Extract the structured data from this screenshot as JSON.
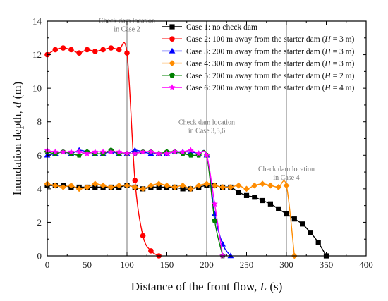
{
  "chart_data": {
    "type": "line",
    "xlabel_prefix": "Distance of the front flow, ",
    "xlabel_var": "L",
    "xlabel_suffix": " (s)",
    "ylabel_prefix": "Inundation depth, ",
    "ylabel_var": "d",
    "ylabel_suffix": " (m)",
    "xlim": [
      0,
      400
    ],
    "ylim": [
      0,
      14
    ],
    "xticks": [
      0,
      50,
      100,
      150,
      200,
      250,
      300,
      350,
      400
    ],
    "yticks": [
      0,
      2,
      4,
      6,
      8,
      10,
      12,
      14
    ],
    "legend_position": "top-right",
    "grid": false,
    "vlines": [
      100,
      200,
      300
    ],
    "annotations": [
      {
        "lines": [
          "Check dam location",
          "in Case 2"
        ],
        "x": 100,
        "y": 13.9
      },
      {
        "lines": [
          "Check dam location",
          "in Case 3,5,6"
        ],
        "x": 200,
        "y": 7.85
      },
      {
        "lines": [
          "Check dam location",
          "in Case 4"
        ],
        "x": 300,
        "y": 5.05
      }
    ],
    "series": [
      {
        "name": "Case 1: no check dam",
        "color": "#000000",
        "marker": "square",
        "x": [
          0,
          10,
          20,
          30,
          40,
          50,
          60,
          70,
          80,
          90,
          100,
          110,
          120,
          130,
          140,
          150,
          160,
          170,
          180,
          190,
          200,
          210,
          220,
          230,
          240,
          250,
          260,
          270,
          280,
          290,
          300,
          310,
          320,
          330,
          340,
          350
        ],
        "y": [
          4.2,
          4.2,
          4.2,
          4.1,
          4.1,
          4.1,
          4.1,
          4.1,
          4.1,
          4.1,
          4.2,
          4.1,
          4.0,
          4.1,
          4.1,
          4.1,
          4.1,
          4.0,
          4.0,
          4.1,
          4.2,
          4.2,
          4.1,
          4.1,
          3.8,
          3.6,
          3.5,
          3.3,
          3.1,
          2.8,
          2.5,
          2.2,
          1.9,
          1.4,
          0.8,
          0.0
        ]
      },
      {
        "name": "Case 2: 100 m away from the starter dam (",
        "name_var": "H",
        "name_suffix": " = 3 m)",
        "color": "#ff0000",
        "marker": "circle",
        "x": [
          0,
          10,
          20,
          30,
          40,
          50,
          60,
          70,
          80,
          90,
          100,
          110,
          120,
          130,
          140
        ],
        "y": [
          12.0,
          12.3,
          12.4,
          12.3,
          12.1,
          12.3,
          12.2,
          12.3,
          12.4,
          12.3,
          12.1,
          4.5,
          1.2,
          0.3,
          0.0
        ]
      },
      {
        "name": "Case 3: 200 m away from the starter dam (",
        "name_var": "H",
        "name_suffix": " = 3 m)",
        "color": "#0000ff",
        "marker": "triangle",
        "x": [
          0,
          10,
          20,
          30,
          40,
          50,
          60,
          70,
          80,
          90,
          100,
          110,
          120,
          130,
          140,
          150,
          160,
          170,
          180,
          190,
          200,
          210,
          220,
          230
        ],
        "y": [
          6.0,
          6.1,
          6.2,
          6.1,
          6.3,
          6.2,
          6.1,
          6.1,
          6.2,
          6.1,
          6.1,
          6.3,
          6.2,
          6.1,
          6.1,
          6.1,
          6.2,
          6.2,
          6.2,
          6.1,
          6.0,
          2.5,
          0.7,
          0.0
        ]
      },
      {
        "name": "Case 4: 300 m away from the starter dam (",
        "name_var": "H",
        "name_suffix": " = 3 m)",
        "color": "#ff8c00",
        "marker": "diamond",
        "x": [
          0,
          10,
          20,
          30,
          40,
          50,
          60,
          70,
          80,
          90,
          100,
          110,
          120,
          130,
          140,
          150,
          160,
          170,
          180,
          190,
          200,
          210,
          220,
          230,
          240,
          250,
          260,
          270,
          280,
          290,
          300,
          310
        ],
        "y": [
          4.3,
          4.2,
          4.1,
          4.2,
          4.0,
          4.1,
          4.3,
          4.2,
          4.1,
          4.2,
          4.2,
          4.1,
          4.0,
          4.2,
          4.3,
          4.2,
          4.1,
          4.2,
          4.0,
          4.2,
          4.3,
          4.2,
          4.1,
          4.1,
          4.2,
          4.0,
          4.2,
          4.3,
          4.2,
          4.1,
          4.2,
          0.0
        ]
      },
      {
        "name": "Case 5: 200 m away from the starter dam (",
        "name_var": "H",
        "name_suffix": " = 2 m)",
        "color": "#008000",
        "marker": "pentagon",
        "x": [
          0,
          10,
          20,
          30,
          40,
          50,
          60,
          70,
          80,
          90,
          100,
          110,
          120,
          130,
          140,
          150,
          160,
          170,
          180,
          190,
          200,
          210,
          220
        ],
        "y": [
          6.2,
          6.1,
          6.2,
          6.1,
          6.0,
          6.2,
          6.1,
          6.1,
          6.3,
          6.1,
          6.1,
          6.1,
          6.2,
          6.2,
          6.1,
          6.2,
          6.2,
          6.1,
          6.0,
          6.0,
          6.0,
          2.1,
          0.0
        ]
      },
      {
        "name": "Case 6: 200 m away from the starter dam (",
        "name_var": "H",
        "name_suffix": " = 4 m)",
        "color": "#ff00ff",
        "marker": "star",
        "x": [
          0,
          10,
          20,
          30,
          40,
          50,
          60,
          70,
          80,
          90,
          100,
          110,
          120,
          130,
          140,
          150,
          160,
          170,
          180,
          190,
          200,
          210,
          220
        ],
        "y": [
          6.3,
          6.2,
          6.2,
          6.2,
          6.2,
          6.1,
          6.2,
          6.2,
          6.2,
          6.2,
          6.1,
          6.1,
          6.2,
          6.2,
          6.1,
          6.1,
          6.2,
          6.2,
          6.3,
          6.1,
          6.0,
          3.1,
          0.0
        ]
      }
    ]
  }
}
